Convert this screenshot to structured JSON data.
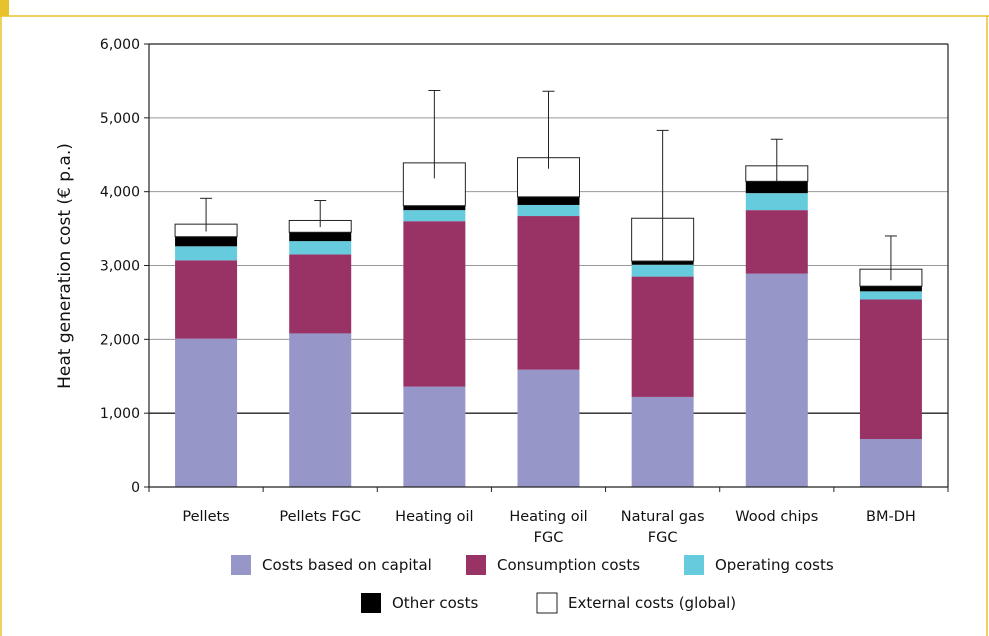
{
  "chart_data": {
    "type": "bar",
    "stacked": true,
    "title": "",
    "xlabel": "",
    "ylabel": "Heat generation cost (€ p.a.)",
    "ylim": [
      0,
      6000
    ],
    "yticks": [
      0,
      1000,
      2000,
      3000,
      4000,
      5000,
      6000
    ],
    "ytick_labels": [
      "0",
      "1,000",
      "2,000",
      "3,000",
      "4,000",
      "5,000",
      "6,000"
    ],
    "grid": true,
    "legend_position": "bottom",
    "categories": [
      [
        "Pellets"
      ],
      [
        "Pellets FGC"
      ],
      [
        "Heating oil"
      ],
      [
        "Heating oil",
        "FGC"
      ],
      [
        "Natural gas",
        "FGC"
      ],
      [
        "Wood chips"
      ],
      [
        "BM-DH"
      ]
    ],
    "series": [
      {
        "name": "Costs based on capital",
        "color": "#9696c8",
        "values": [
          2010,
          2080,
          1360,
          1590,
          1220,
          2890,
          650
        ]
      },
      {
        "name": "Consumption costs",
        "color": "#993366",
        "values": [
          1060,
          1070,
          2240,
          2080,
          1630,
          860,
          1890
        ]
      },
      {
        "name": "Operating costs",
        "color": "#66ccdd",
        "values": [
          190,
          180,
          150,
          150,
          160,
          230,
          110
        ]
      },
      {
        "name": "Other costs",
        "color": "#000000",
        "values": [
          130,
          120,
          60,
          110,
          50,
          160,
          70
        ]
      },
      {
        "name": "External costs (global)",
        "color": "#ffffff",
        "values": [
          170,
          160,
          580,
          530,
          580,
          210,
          230
        ]
      }
    ],
    "error_bars": {
      "upper": [
        3910,
        3880,
        5370,
        5360,
        4830,
        4710,
        3400
      ],
      "lower": [
        3460,
        3520,
        4180,
        4310,
        3040,
        4140,
        2800
      ]
    }
  }
}
